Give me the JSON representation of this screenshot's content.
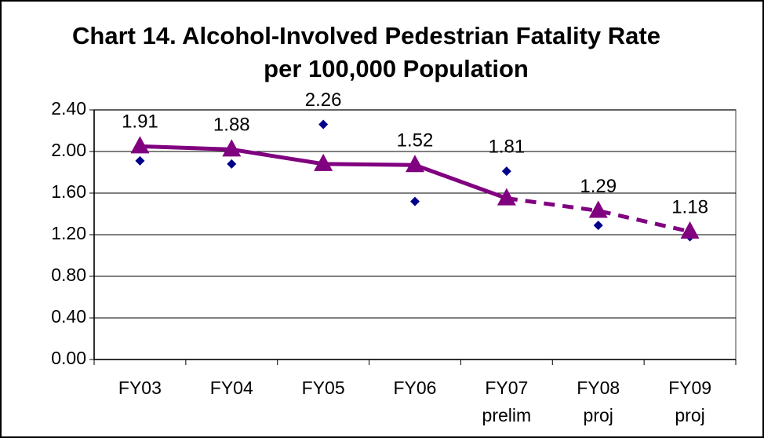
{
  "chart_data": {
    "type": "line",
    "title": [
      "Chart 14. Alcohol-Involved Pedestrian Fatality Rate",
      "per 100,000 Population"
    ],
    "categories": [
      [
        "FY03"
      ],
      [
        "FY04"
      ],
      [
        "FY05"
      ],
      [
        "FY06"
      ],
      [
        "FY07",
        "prelim"
      ],
      [
        "FY08",
        "proj"
      ],
      [
        "FY09",
        "proj"
      ]
    ],
    "series": [
      {
        "marker": "diamond",
        "color": "#00008b",
        "values": [
          1.91,
          1.88,
          2.26,
          1.52,
          1.81,
          1.29,
          1.18
        ],
        "data_labels": true
      },
      {
        "marker": "triangle",
        "color": "#800080",
        "values": [
          2.05,
          2.02,
          1.88,
          1.87,
          1.55,
          1.43,
          1.23
        ],
        "line": true,
        "dashed_from": 4
      }
    ],
    "ylim": [
      0,
      2.4
    ],
    "yticks": [
      {
        "value": 0,
        "label": "0.00"
      },
      {
        "value": 0.4,
        "label": "0.40"
      },
      {
        "value": 0.8,
        "label": "0.80"
      },
      {
        "value": 1.2,
        "label": "1.20"
      },
      {
        "value": 1.6,
        "label": "1.60"
      },
      {
        "value": 2.0,
        "label": "2.00"
      },
      {
        "value": 2.4,
        "label": "2.40"
      }
    ],
    "grid": true
  }
}
